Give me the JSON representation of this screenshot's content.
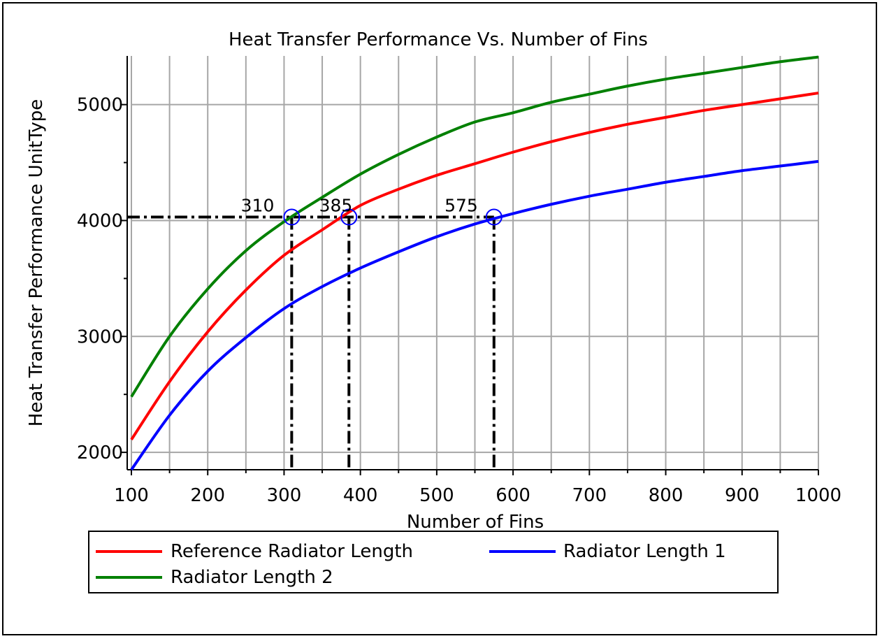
{
  "chart_data": {
    "type": "line",
    "title": "Heat Transfer Performance Vs. Number of Fins",
    "xlabel": "Number of Fins",
    "ylabel": "Heat Transfer Performance UnitType",
    "xlim": [
      100,
      1000
    ],
    "ylim": [
      1850,
      5420
    ],
    "x_ticks": [
      100,
      200,
      300,
      400,
      500,
      600,
      700,
      800,
      900,
      1000
    ],
    "y_ticks": [
      2000,
      3000,
      4000,
      5000
    ],
    "grid": true,
    "legend_position": "bottom",
    "series": [
      {
        "name": "Reference Radiator Length",
        "color": "#ff0000",
        "x": [
          100,
          150,
          200,
          250,
          300,
          350,
          400,
          450,
          500,
          550,
          600,
          650,
          700,
          750,
          800,
          850,
          900,
          950,
          1000
        ],
        "y": [
          2110,
          2610,
          3040,
          3400,
          3700,
          3920,
          4130,
          4270,
          4390,
          4490,
          4590,
          4680,
          4760,
          4830,
          4890,
          4950,
          5000,
          5050,
          5100
        ]
      },
      {
        "name": "Radiator Length 1",
        "color": "#0000ff",
        "x": [
          100,
          150,
          200,
          250,
          300,
          350,
          400,
          450,
          500,
          550,
          600,
          650,
          700,
          750,
          800,
          850,
          900,
          950,
          1000
        ],
        "y": [
          1850,
          2320,
          2700,
          2990,
          3240,
          3430,
          3590,
          3730,
          3860,
          3970,
          4060,
          4140,
          4210,
          4270,
          4330,
          4380,
          4430,
          4470,
          4510
        ]
      },
      {
        "name": "Radiator Length 2",
        "color": "#008000",
        "x": [
          100,
          150,
          200,
          250,
          300,
          350,
          400,
          450,
          500,
          550,
          600,
          650,
          700,
          750,
          800,
          850,
          900,
          950,
          1000
        ],
        "y": [
          2480,
          3000,
          3410,
          3740,
          3990,
          4200,
          4400,
          4570,
          4720,
          4850,
          4930,
          5020,
          5090,
          5160,
          5220,
          5270,
          5320,
          5370,
          5410
        ]
      }
    ],
    "reference_line": {
      "y": 4030,
      "x_start": 100,
      "color": "#000000",
      "style": "dash-dot"
    },
    "annotations": [
      {
        "label": "310",
        "x": 310,
        "y": 4030,
        "marker_color": "#0000ff"
      },
      {
        "label": "385",
        "x": 385,
        "y": 4030,
        "marker_color": "#0000ff"
      },
      {
        "label": "575",
        "x": 575,
        "y": 4030,
        "marker_color": "#0000ff"
      }
    ]
  }
}
